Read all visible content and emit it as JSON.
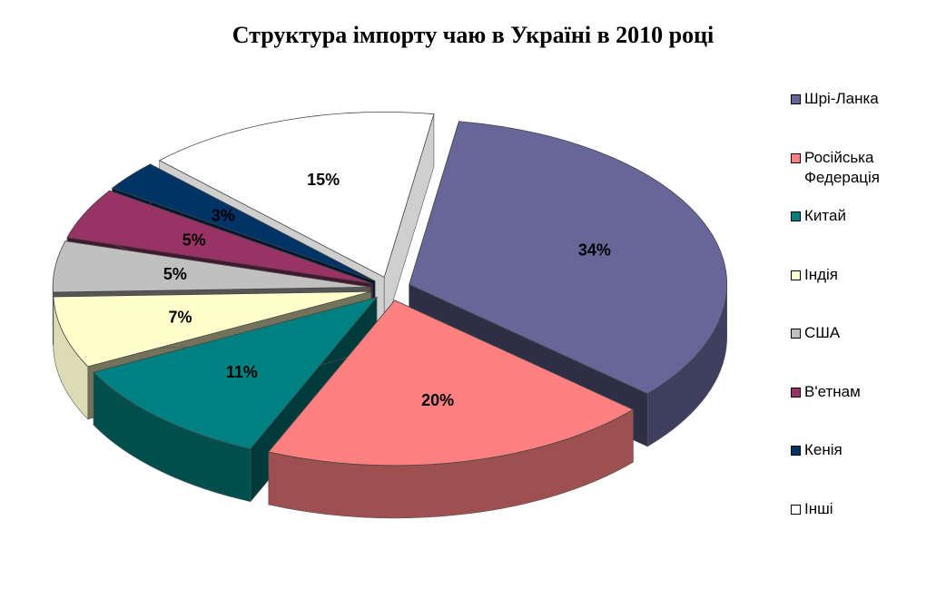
{
  "chart_data": {
    "type": "pie",
    "title": "Структура імпорту чаю в Україні в 2010 році",
    "slices": [
      {
        "name": "Шрі-Ланка",
        "value": 34,
        "label": "34%",
        "color": "#666699"
      },
      {
        "name": "Російська Федерація",
        "value": 20,
        "label": "20%",
        "color": "#FF8080"
      },
      {
        "name": "Китай",
        "value": 11,
        "label": "11%",
        "color": "#008080"
      },
      {
        "name": "Індія",
        "value": 7,
        "label": "7%",
        "color": "#FFFFCC"
      },
      {
        "name": "США",
        "value": 5,
        "label": "5%",
        "color": "#C0C0C0"
      },
      {
        "name": "В'етнам",
        "value": 5,
        "label": "5%",
        "color": "#993366"
      },
      {
        "name": "Кенія",
        "value": 3,
        "label": "3%",
        "color": "#003366"
      },
      {
        "name": "Інші",
        "value": 15,
        "label": "15%",
        "color": "#FFFFFF"
      }
    ],
    "legend": {
      "position": "right",
      "entries": [
        "Шрі-Ланка",
        "Російська\nФедерація",
        "Китай",
        "Індія",
        "США",
        "В'етнам",
        "Кенія",
        "Інші"
      ]
    },
    "style": "3d-exploded"
  }
}
